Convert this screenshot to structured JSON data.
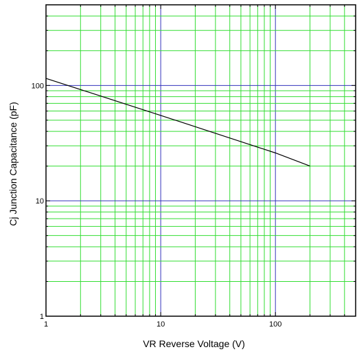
{
  "chart_data": {
    "type": "line",
    "xscale": "log",
    "yscale": "log",
    "xlim": [
      1,
      500
    ],
    "ylim": [
      1,
      500
    ],
    "grid": true,
    "xlabel": "VR    Reverse Voltage   (V)",
    "ylabel": "Cj    Junction Capacitance   (pF)",
    "x_tick_labels": [
      {
        "value": 1,
        "label": "1"
      },
      {
        "value": 10,
        "label": "10"
      },
      {
        "value": 100,
        "label": "100"
      }
    ],
    "y_tick_labels": [
      {
        "value": 1,
        "label": "1"
      },
      {
        "value": 10,
        "label": "10"
      },
      {
        "value": 100,
        "label": "100"
      }
    ],
    "series": [
      {
        "points": [
          {
            "x": 1,
            "y": 115
          },
          {
            "x": 10,
            "y": 55
          },
          {
            "x": 100,
            "y": 26
          },
          {
            "x": 200,
            "y": 20
          }
        ]
      }
    ],
    "colors": {
      "minor_grid": "#33dd33",
      "major_grid": "#3333bb",
      "line": "#000000",
      "frame": "#000000"
    }
  }
}
